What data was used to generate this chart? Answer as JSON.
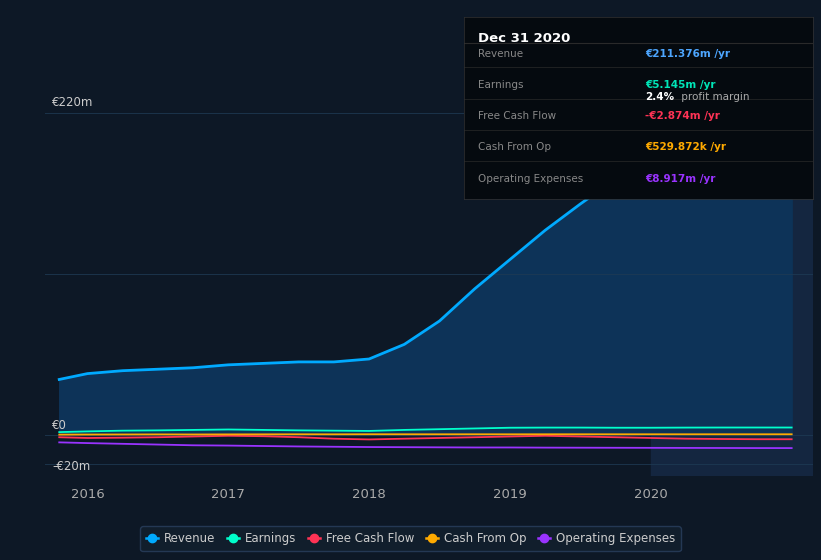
{
  "background_color": "#0d1826",
  "plot_bg_color": "#0d1826",
  "years": [
    2015.8,
    2016.0,
    2016.25,
    2016.5,
    2016.75,
    2017.0,
    2017.25,
    2017.5,
    2017.75,
    2018.0,
    2018.25,
    2018.5,
    2018.75,
    2019.0,
    2019.25,
    2019.5,
    2019.75,
    2020.0,
    2020.25,
    2020.5,
    2020.75,
    2021.0
  ],
  "revenue": [
    38,
    42,
    44,
    45,
    46,
    48,
    49,
    50,
    50,
    52,
    62,
    78,
    100,
    120,
    140,
    158,
    175,
    190,
    200,
    207,
    211,
    211
  ],
  "earnings": [
    2.0,
    2.5,
    3.0,
    3.2,
    3.5,
    3.8,
    3.5,
    3.2,
    3.0,
    2.8,
    3.5,
    4.0,
    4.5,
    5.0,
    5.1,
    5.1,
    5.0,
    5.0,
    5.1,
    5.14,
    5.15,
    5.145
  ],
  "free_cash_flow": [
    -1.5,
    -2.0,
    -1.8,
    -1.5,
    -1.0,
    -0.5,
    -0.8,
    -1.5,
    -2.5,
    -3.0,
    -2.5,
    -2.0,
    -1.5,
    -1.0,
    -0.5,
    -1.0,
    -1.5,
    -2.0,
    -2.5,
    -2.7,
    -2.85,
    -2.874
  ],
  "cash_from_op": [
    0.3,
    0.35,
    0.4,
    0.45,
    0.4,
    0.45,
    0.48,
    0.52,
    0.5,
    0.55,
    0.53,
    0.52,
    0.53,
    0.51,
    0.52,
    0.53,
    0.52,
    0.53,
    0.53,
    0.53,
    0.53,
    0.53
  ],
  "operating_exp": [
    -5,
    -5.5,
    -6,
    -6.5,
    -7,
    -7.2,
    -7.5,
    -7.8,
    -8.0,
    -8.2,
    -8.3,
    -8.4,
    -8.5,
    -8.5,
    -8.6,
    -8.65,
    -8.7,
    -8.75,
    -8.8,
    -8.85,
    -8.9,
    -8.917
  ],
  "revenue_color": "#00aaff",
  "earnings_color": "#00ffcc",
  "free_cash_flow_color": "#ff3355",
  "cash_from_op_color": "#ffaa00",
  "operating_exp_color": "#9933ff",
  "fill_color": "#0d3358",
  "highlight_x_start": 2020.0,
  "highlight_color": "#142640",
  "grid_color": "#1e3a54",
  "ylim": [
    -28,
    240
  ],
  "xlim": [
    2015.7,
    2021.15
  ],
  "xticks": [
    2016,
    2017,
    2018,
    2019,
    2020
  ],
  "ylabel_220": "€220m",
  "ylabel_0": "€0",
  "ylabel_neg20": "-€20m",
  "info_box": {
    "title": "Dec 31 2020",
    "rows": [
      {
        "label": "Revenue",
        "value": "€211.376m /yr",
        "value_color": "#4da6ff",
        "label_color": "#888888"
      },
      {
        "label": "Earnings",
        "value": "€5.145m /yr",
        "value_color": "#00e6b8",
        "label_color": "#888888",
        "sub_value": "2.4% profit margin",
        "sub_value_bold": "2.4%",
        "sub_value_rest": " profit margin"
      },
      {
        "label": "Free Cash Flow",
        "value": "-€2.874m /yr",
        "value_color": "#ff3355",
        "label_color": "#888888"
      },
      {
        "label": "Cash From Op",
        "value": "€529.872k /yr",
        "value_color": "#ffaa00",
        "label_color": "#888888"
      },
      {
        "label": "Operating Expenses",
        "value": "€8.917m /yr",
        "value_color": "#9933ff",
        "label_color": "#888888"
      }
    ]
  },
  "legend": [
    {
      "label": "Revenue",
      "color": "#00aaff"
    },
    {
      "label": "Earnings",
      "color": "#00ffcc"
    },
    {
      "label": "Free Cash Flow",
      "color": "#ff3355"
    },
    {
      "label": "Cash From Op",
      "color": "#ffaa00"
    },
    {
      "label": "Operating Expenses",
      "color": "#9933ff"
    }
  ]
}
